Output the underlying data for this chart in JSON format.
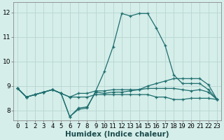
{
  "xlabel": "Humidex (Indice chaleur)",
  "background_color": "#d5eeea",
  "grid_color": "#bcd8d4",
  "line_color": "#1e6e6e",
  "xlim": [
    -0.5,
    23.5
  ],
  "ylim": [
    7.6,
    12.4
  ],
  "yticks": [
    8,
    9,
    10,
    11,
    12
  ],
  "xticks": [
    0,
    1,
    2,
    3,
    4,
    5,
    6,
    7,
    8,
    9,
    10,
    11,
    12,
    13,
    14,
    15,
    16,
    17,
    18,
    19,
    20,
    21,
    22,
    23
  ],
  "series": [
    [
      8.9,
      8.55,
      8.65,
      8.75,
      8.85,
      8.7,
      7.75,
      8.05,
      8.1,
      8.8,
      9.6,
      10.6,
      11.95,
      11.85,
      11.95,
      11.95,
      11.35,
      10.65,
      9.45,
      9.1,
      9.1,
      9.1,
      8.85,
      8.45
    ],
    [
      8.9,
      8.55,
      8.65,
      8.75,
      8.85,
      8.7,
      7.75,
      8.1,
      8.15,
      8.75,
      8.7,
      8.75,
      8.75,
      8.8,
      8.85,
      9.0,
      9.1,
      9.2,
      9.3,
      9.3,
      9.3,
      9.3,
      9.05,
      8.45
    ],
    [
      8.9,
      8.55,
      8.65,
      8.75,
      8.85,
      8.7,
      8.55,
      8.55,
      8.55,
      8.65,
      8.65,
      8.65,
      8.65,
      8.65,
      8.65,
      8.65,
      8.55,
      8.55,
      8.45,
      8.45,
      8.5,
      8.5,
      8.5,
      8.45
    ],
    [
      8.9,
      8.55,
      8.65,
      8.75,
      8.85,
      8.7,
      8.55,
      8.7,
      8.7,
      8.8,
      8.8,
      8.85,
      8.85,
      8.85,
      8.85,
      8.9,
      8.9,
      8.9,
      8.9,
      8.85,
      8.8,
      8.85,
      8.75,
      8.45
    ]
  ],
  "tick_fontsize": 6.5,
  "xlabel_fontsize": 7.5,
  "xlabel_fontweight": "bold"
}
